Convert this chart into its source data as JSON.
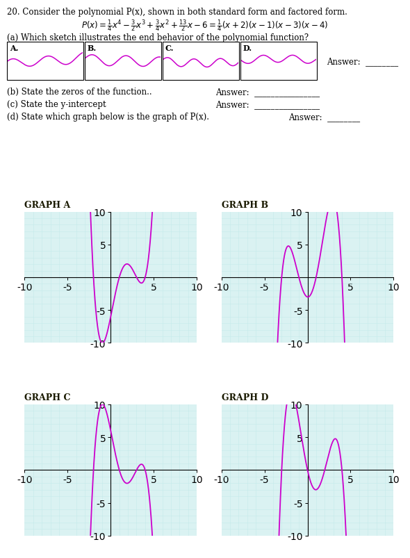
{
  "title_text": "20. Consider the polynomial P(x), shown in both standard form and factored form.",
  "part_a_text": "(a) Which sketch illustrates the end behavior of the polynomial function?",
  "part_b_text": "(b) State the zeros of the function..",
  "part_c_text": "(c) State the y-intercept",
  "part_d_text": "(d) State which graph below is the graph of P(x).",
  "answer_text": "Answer:",
  "graph_labels": [
    "GRAPH A",
    "GRAPH B",
    "GRAPH C",
    "GRAPH D"
  ],
  "curve_color": "#cc00cc",
  "grid_color": "#c5eaea",
  "bg_color": "#ffffff",
  "graph_bg_color": "#daf2f2",
  "sketch_labels": [
    "A.",
    "B.",
    "C.",
    "D."
  ]
}
